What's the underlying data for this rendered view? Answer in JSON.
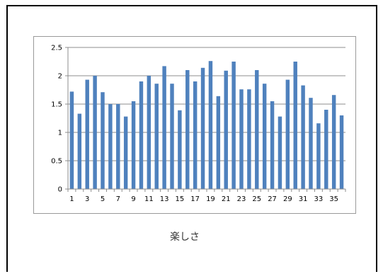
{
  "caption": "楽しさ",
  "chart_data": {
    "type": "bar",
    "categories": [
      "1",
      "2",
      "3",
      "4",
      "5",
      "6",
      "7",
      "8",
      "9",
      "10",
      "11",
      "12",
      "13",
      "14",
      "15",
      "16",
      "17",
      "18",
      "19",
      "20",
      "21",
      "22",
      "23",
      "24",
      "25",
      "26",
      "27",
      "28",
      "29",
      "30",
      "31",
      "32",
      "33",
      "34",
      "35",
      "36"
    ],
    "x_tick_labels": [
      "1",
      "3",
      "5",
      "7",
      "9",
      "11",
      "13",
      "15",
      "17",
      "19",
      "21",
      "23",
      "25",
      "27",
      "29",
      "31",
      "33",
      "35"
    ],
    "values": [
      1.72,
      1.33,
      1.93,
      2.0,
      1.71,
      1.5,
      1.5,
      1.28,
      1.55,
      1.9,
      2.0,
      1.86,
      2.17,
      1.86,
      1.39,
      2.1,
      1.9,
      2.14,
      2.26,
      1.64,
      2.09,
      2.25,
      1.76,
      1.76,
      2.1,
      1.86,
      1.55,
      1.28,
      1.93,
      2.25,
      1.83,
      1.61,
      1.16,
      1.4,
      1.66,
      1.3
    ],
    "y_ticks": [
      "0",
      "0.5",
      "1",
      "1.5",
      "2",
      "2.5"
    ],
    "ylim": [
      0,
      2.5
    ],
    "grid": true,
    "bar_color": "#4f81bd",
    "gridline_color": "#8c8c8c",
    "title": "",
    "xlabel": "",
    "ylabel": ""
  }
}
